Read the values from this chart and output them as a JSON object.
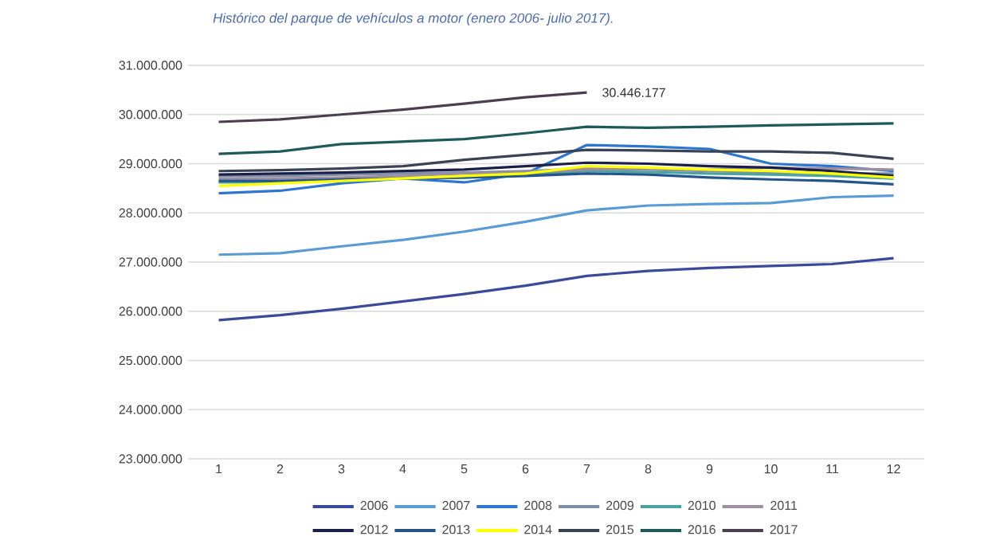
{
  "chart_data": {
    "type": "line",
    "title": "Histórico del parque de vehículos a motor (enero 2006- julio 2017).",
    "categories": [
      "1",
      "2",
      "3",
      "4",
      "5",
      "6",
      "7",
      "8",
      "9",
      "10",
      "11",
      "12"
    ],
    "ylim": [
      23000000,
      31000000
    ],
    "yticks": [
      {
        "value": 23000000,
        "label": "23.000.000"
      },
      {
        "value": 24000000,
        "label": "24.000.000"
      },
      {
        "value": 25000000,
        "label": "25.000.000"
      },
      {
        "value": 26000000,
        "label": "26.000.000"
      },
      {
        "value": 27000000,
        "label": "27.000.000"
      },
      {
        "value": 28000000,
        "label": "28.000.000"
      },
      {
        "value": 29000000,
        "label": "29.000.000"
      },
      {
        "value": 30000000,
        "label": "30.000.000"
      },
      {
        "value": 31000000,
        "label": "31.000.000"
      }
    ],
    "grid": "y",
    "legend": "bottom",
    "marker": "none",
    "line_style": "solid",
    "annotations": [
      {
        "text": "30.446.177",
        "x": "7",
        "y": 30446177
      }
    ],
    "series": [
      {
        "name": "2006",
        "color": "#3a4a9a",
        "values": [
          25820000,
          25920000,
          26050000,
          26200000,
          26350000,
          26520000,
          26720000,
          26820000,
          26880000,
          26920000,
          26960000,
          27080000
        ]
      },
      {
        "name": "2007",
        "color": "#5b9bd5",
        "values": [
          27150000,
          27180000,
          27320000,
          27450000,
          27620000,
          27820000,
          28050000,
          28150000,
          28180000,
          28200000,
          28320000,
          28350000
        ]
      },
      {
        "name": "2008",
        "color": "#2e75d0",
        "values": [
          28400000,
          28450000,
          28600000,
          28700000,
          28620000,
          28800000,
          29380000,
          29350000,
          29300000,
          29000000,
          28950000,
          28850000
        ]
      },
      {
        "name": "2009",
        "color": "#7f8fa6",
        "values": [
          28750000,
          28750000,
          28780000,
          28800000,
          28820000,
          28850000,
          28900000,
          28880000,
          28850000,
          28820000,
          28800000,
          28800000
        ]
      },
      {
        "name": "2010",
        "color": "#4aa3a0",
        "values": [
          28620000,
          28620000,
          28650000,
          28700000,
          28720000,
          28780000,
          28850000,
          28830000,
          28800000,
          28780000,
          28750000,
          28700000
        ]
      },
      {
        "name": "2011",
        "color": "#9e8fa0",
        "values": [
          28700000,
          28700000,
          28720000,
          28750000,
          28800000,
          28820000,
          28880000,
          28900000,
          28880000,
          28920000,
          28900000,
          28880000
        ]
      },
      {
        "name": "2012",
        "color": "#1a1f4a",
        "values": [
          28780000,
          28800000,
          28820000,
          28850000,
          28880000,
          28950000,
          29020000,
          29000000,
          28950000,
          28920000,
          28850000,
          28750000
        ]
      },
      {
        "name": "2013",
        "color": "#24558a",
        "values": [
          28650000,
          28650000,
          28680000,
          28700000,
          28720000,
          28750000,
          28800000,
          28780000,
          28720000,
          28680000,
          28650000,
          28580000
        ]
      },
      {
        "name": "2014",
        "color": "#ffff00",
        "values": [
          28550000,
          28600000,
          28650000,
          28700000,
          28750000,
          28800000,
          28950000,
          28920000,
          28880000,
          28850000,
          28800000,
          28720000
        ]
      },
      {
        "name": "2015",
        "color": "#3a4255",
        "values": [
          28850000,
          28870000,
          28900000,
          28950000,
          29080000,
          29180000,
          29280000,
          29270000,
          29250000,
          29250000,
          29220000,
          29100000
        ]
      },
      {
        "name": "2016",
        "color": "#1f5a5a",
        "values": [
          29200000,
          29250000,
          29400000,
          29450000,
          29500000,
          29620000,
          29750000,
          29730000,
          29750000,
          29780000,
          29800000,
          29820000
        ]
      },
      {
        "name": "2017",
        "color": "#4a3f4f",
        "values": [
          29850000,
          29900000,
          30000000,
          30100000,
          30220000,
          30350000,
          30446177,
          null,
          null,
          null,
          null,
          null
        ]
      }
    ]
  }
}
